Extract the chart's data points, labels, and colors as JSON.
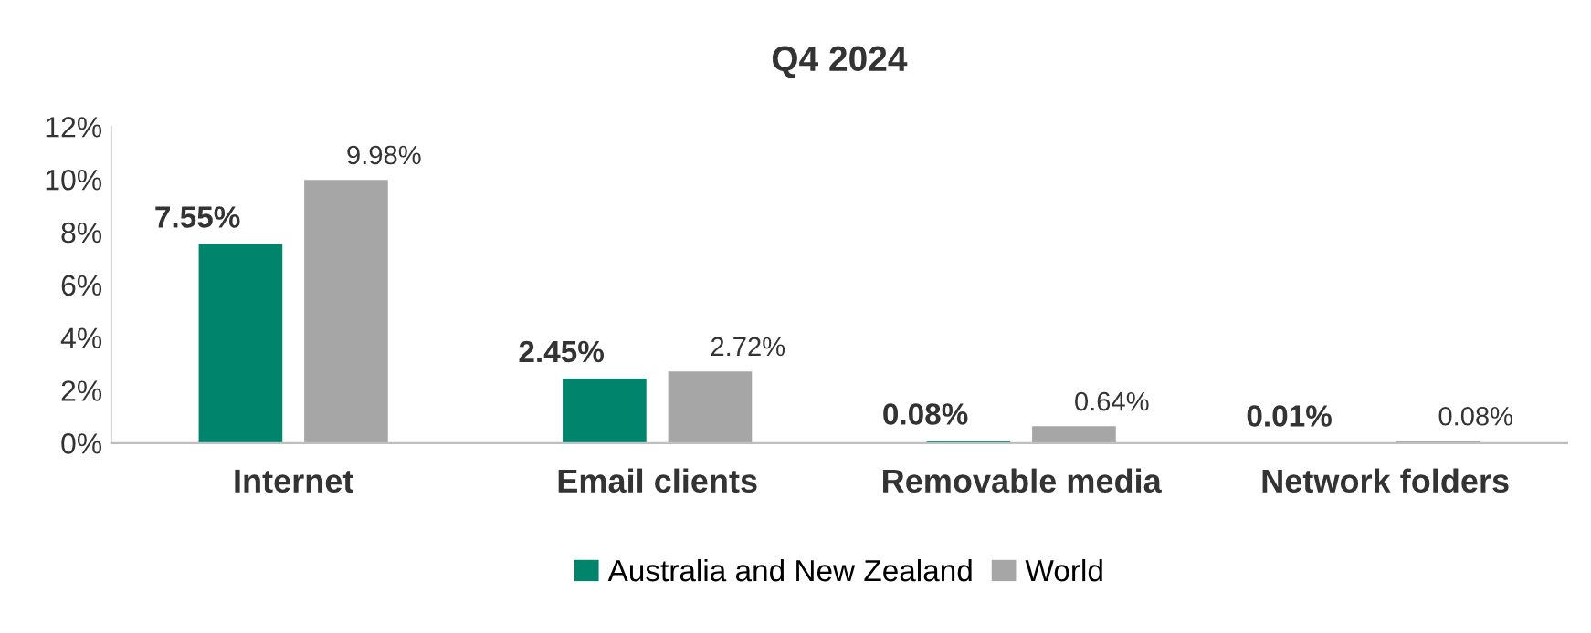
{
  "chart_data": {
    "type": "bar",
    "title": "Q4 2024",
    "categories": [
      "Internet",
      "Email clients",
      "Removable media",
      "Network folders"
    ],
    "series": [
      {
        "name": "Australia and New Zealand",
        "color": "#00846b",
        "values": [
          7.55,
          2.45,
          0.08,
          0.01
        ],
        "value_labels": [
          "7.55%",
          "2.45%",
          "0.08%",
          "0.01%"
        ]
      },
      {
        "name": "World",
        "color": "#a6a6a6",
        "values": [
          9.98,
          2.72,
          0.64,
          0.08
        ],
        "value_labels": [
          "9.98%",
          "2.72%",
          "0.64%",
          "0.08%"
        ]
      }
    ],
    "ylim": [
      0,
      12
    ],
    "yticks": [
      {
        "value": 0,
        "label": "0%"
      },
      {
        "value": 2,
        "label": "2%"
      },
      {
        "value": 4,
        "label": "4%"
      },
      {
        "value": 6,
        "label": "6%"
      },
      {
        "value": 8,
        "label": "8%"
      },
      {
        "value": 10,
        "label": "10%"
      },
      {
        "value": 12,
        "label": "12%"
      }
    ],
    "legend": "bottom"
  }
}
